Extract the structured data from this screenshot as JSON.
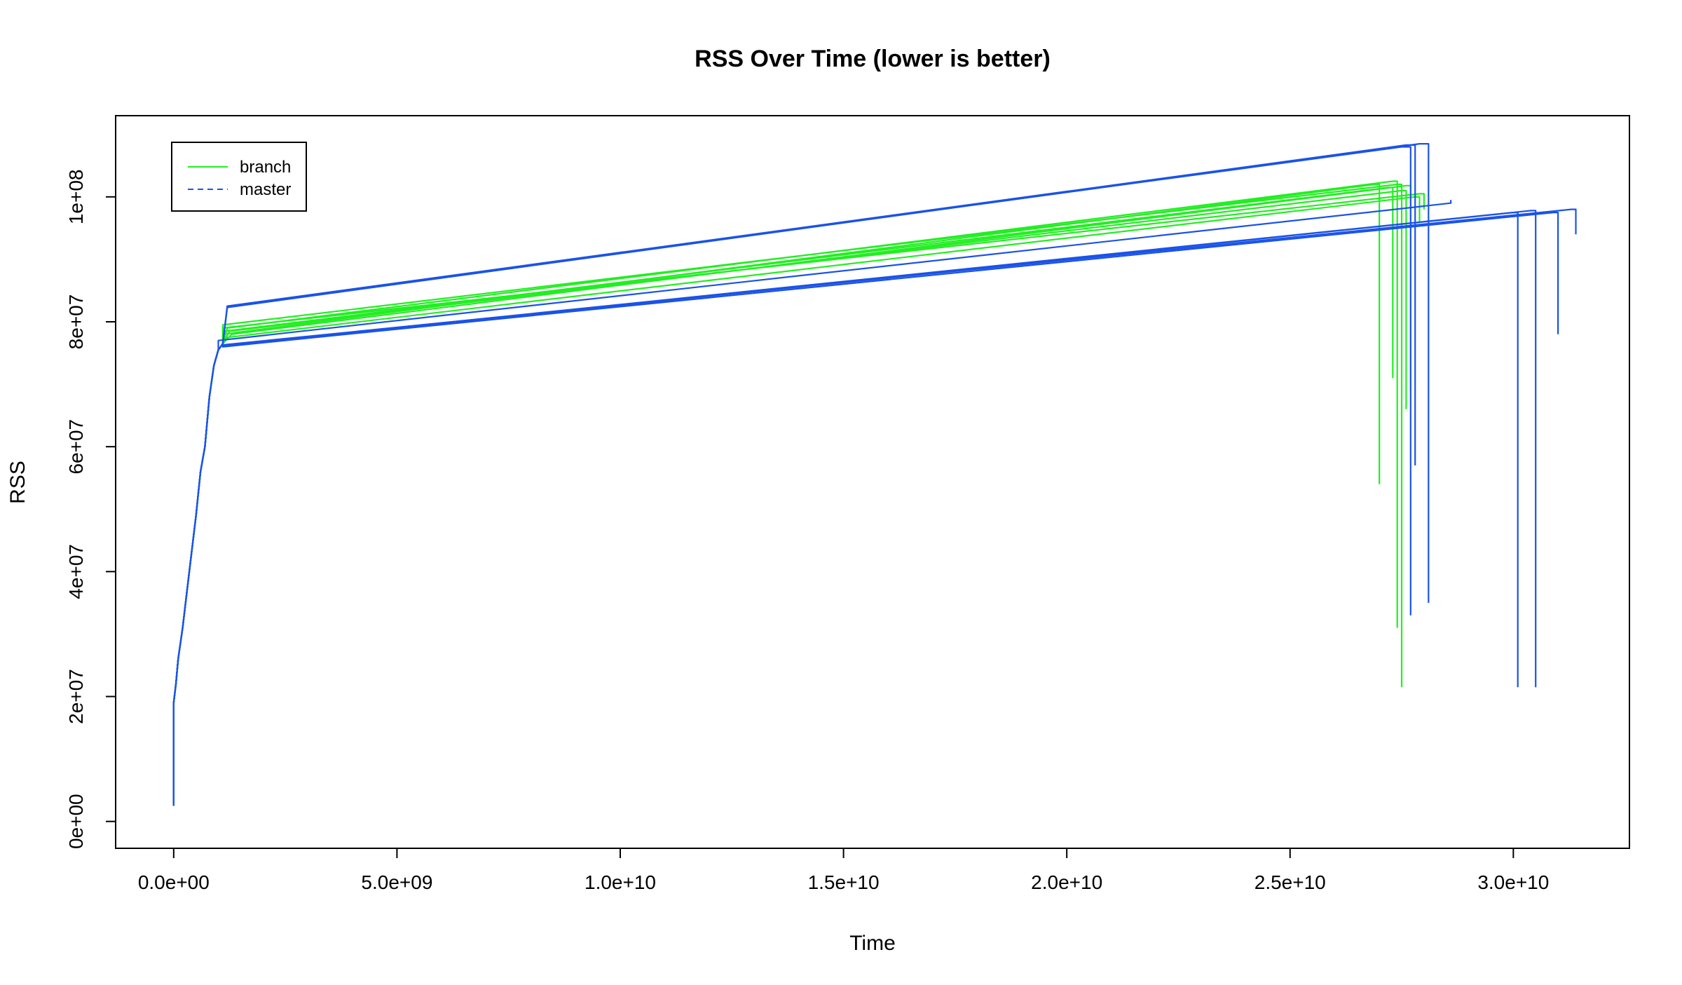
{
  "chart_data": {
    "type": "line",
    "title": "RSS Over Time (lower is better)",
    "xlabel": "Time",
    "ylabel": "RSS",
    "xlim": [
      -1300000000.0,
      32600000000.0
    ],
    "ylim": [
      -4300000.0,
      113000000.0
    ],
    "x_ticks": [
      0,
      5000000000.0,
      10000000000.0,
      15000000000.0,
      20000000000.0,
      25000000000.0,
      30000000000.0
    ],
    "x_tick_labels": [
      "0.0e+00",
      "5.0e+09",
      "1.0e+10",
      "1.5e+10",
      "2.0e+10",
      "2.5e+10",
      "3.0e+10"
    ],
    "y_ticks": [
      0,
      20000000.0,
      40000000.0,
      60000000.0,
      80000000.0,
      100000000.0
    ],
    "y_tick_labels": [
      "0e+00",
      "2e+07",
      "4e+07",
      "6e+07",
      "8e+07",
      "1e+08"
    ],
    "grid": false,
    "legend": {
      "position": "top-left",
      "entries": [
        {
          "name": "branch",
          "color": "#22ee22",
          "linestyle": "solid"
        },
        {
          "name": "master",
          "color": "#1a53e8",
          "linestyle": "dashed"
        }
      ]
    },
    "ramp": {
      "note_values": "shared startup ramp (all runs)",
      "x": [
        0,
        0,
        50000000.0,
        100000000.0,
        200000000.0,
        300000000.0,
        400000000.0,
        500000000.0,
        600000000.0,
        700000000.0,
        800000000.0,
        900000000.0,
        1000000000.0,
        1100000000.0
      ],
      "y": [
        2500000.0,
        19000000.0,
        22000000.0,
        26000000.0,
        31000000.0,
        37000000.0,
        43000000.0,
        49000000.0,
        56000000.0,
        60000000.0,
        68000000.0,
        73000000.0,
        75500000.0,
        76500000.0
      ]
    },
    "series": [
      {
        "name": "branch",
        "color": "#22ee22",
        "runs": [
          {
            "x": [
              1100000000.0,
              26900000000.0,
              27000000000.0,
              27000000000.0
            ],
            "y": [
              78000000.0,
              102000000.0,
              102000000.0,
              54000000.0
            ]
          },
          {
            "x": [
              1150000000.0,
              27200000000.0,
              27300000000.0,
              27300000000.0
            ],
            "y": [
              78500000.0,
              101500000.0,
              101500000.0,
              71000000.0
            ]
          },
          {
            "x": [
              1200000000.0,
              27300000000.0,
              27400000000.0,
              27400000000.0
            ],
            "y": [
              79000000.0,
              102500000.0,
              102500000.0,
              31000000.0
            ]
          },
          {
            "x": [
              1100000000.0,
              27400000000.0,
              27500000000.0,
              27500000000.0
            ],
            "y": [
              79500000.0,
              102000000.0,
              102000000.0,
              21500000.0
            ]
          },
          {
            "x": [
              1250000000.0,
              27500000000.0,
              27600000000.0,
              27600000000.0
            ],
            "y": [
              78500000.0,
              101000000.0,
              101000000.0,
              66000000.0
            ]
          },
          {
            "x": [
              1300000000.0,
              27600000000.0,
              27700000000.0,
              27700000000.0
            ],
            "y": [
              78000000.0,
              101800000.0,
              101800000.0,
              69000000.0
            ]
          },
          {
            "x": [
              1200000000.0,
              27800000000.0,
              27900000000.0,
              27900000000.0
            ],
            "y": [
              77500000.0,
              100000000.0,
              100000000.0,
              96000000.0
            ]
          },
          {
            "x": [
              1100000000.0,
              27900000000.0,
              28000000000.0,
              28000000000.0
            ],
            "y": [
              79000000.0,
              100500000.0,
              100500000.0,
              98000000.0
            ]
          }
        ]
      },
      {
        "name": "master",
        "color": "#1a53e8",
        "runs": [
          {
            "x": [
              1200000000.0,
              27500000000.0,
              27700000000.0,
              27700000000.0
            ],
            "y": [
              82500000.0,
              108000000.0,
              108000000.0,
              33000000.0
            ]
          },
          {
            "x": [
              1200000000.0,
              27600000000.0,
              27800000000.0,
              27800000000.0
            ],
            "y": [
              82500000.0,
              108300000.0,
              108300000.0,
              57000000.0
            ]
          },
          {
            "x": [
              1200000000.0,
              27900000000.0,
              28100000000.0,
              28100000000.0
            ],
            "y": [
              82300000.0,
              108500000.0,
              108500000.0,
              35000000.0
            ]
          },
          {
            "x": [
              1000000000.0,
              28600000000.0,
              28600000000.0,
              28600000000.0
            ],
            "y": [
              77000000.0,
              99000000.0,
              99000000.0,
              99500000.0
            ]
          },
          {
            "x": [
              1100000000.0,
              30000000000.0,
              30100000000.0,
              30100000000.0
            ],
            "y": [
              76000000.0,
              97500000.0,
              97500000.0,
              21500000.0
            ]
          },
          {
            "x": [
              1100000000.0,
              30400000000.0,
              30500000000.0,
              30500000000.0
            ],
            "y": [
              76200000.0,
              97800000.0,
              97800000.0,
              21500000.0
            ]
          },
          {
            "x": [
              1100000000.0,
              30900000000.0,
              31000000000.0,
              31000000000.0
            ],
            "y": [
              76000000.0,
              97500000.0,
              97500000.0,
              78000000.0
            ]
          },
          {
            "x": [
              1100000000.0,
              31300000000.0,
              31400000000.0,
              31400000000.0
            ],
            "y": [
              76300000.0,
              98000000.0,
              98000000.0,
              94000000.0
            ]
          }
        ]
      }
    ]
  }
}
